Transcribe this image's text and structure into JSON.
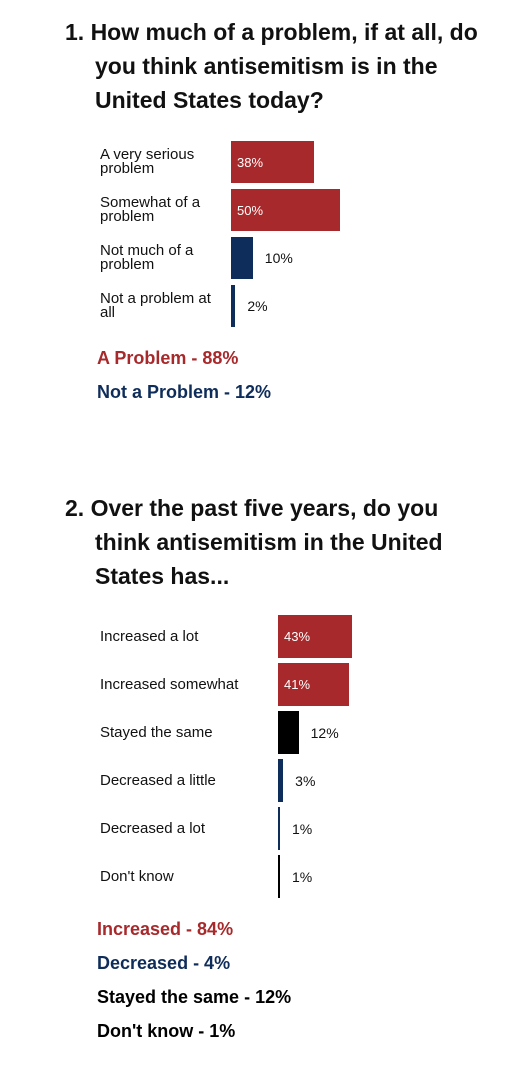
{
  "chart_data": [
    {
      "type": "bar",
      "orientation": "horizontal",
      "title": "1. How much of a problem, if at all, do you think antisemitism is in the United States today?",
      "categories": [
        "A very serious problem",
        "Somewhat of a problem",
        "Not much of a problem",
        "Not a problem at all"
      ],
      "values": [
        38,
        50,
        10,
        2
      ],
      "value_labels": [
        "38%",
        "50%",
        "10%",
        "2%"
      ],
      "colors": [
        "#a8292b",
        "#a8292b",
        "#0f2d5a",
        "#0f2d5a"
      ],
      "annotations": [
        {
          "text": "A Problem - 88%",
          "color": "#a8292b"
        },
        {
          "text": "Not a Problem - 12%",
          "color": "#0f2d5a"
        }
      ]
    },
    {
      "type": "bar",
      "orientation": "horizontal",
      "title": "2. Over the past five years, do you think antisemitism in the United States has...",
      "categories": [
        "Increased a lot",
        "Increased somewhat",
        "Stayed the same",
        "Decreased a little",
        "Decreased a lot",
        "Don't know"
      ],
      "values": [
        43,
        41,
        12,
        3,
        1,
        1
      ],
      "value_labels": [
        "43%",
        "41%",
        "12%",
        "3%",
        "1%",
        "1%"
      ],
      "colors": [
        "#a8292b",
        "#a8292b",
        "#000000",
        "#0f2d5a",
        "#0f2d5a",
        "#000000"
      ],
      "annotations": [
        {
          "text": "Increased - 84%",
          "color": "#a8292b"
        },
        {
          "text": "Decreased - 4%",
          "color": "#0f2d5a"
        },
        {
          "text": "Stayed the same - 12%",
          "color": "#000000"
        },
        {
          "text": "Don't know - 1%",
          "color": "#000000"
        }
      ]
    }
  ]
}
